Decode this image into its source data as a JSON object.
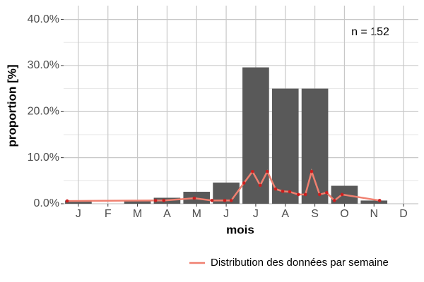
{
  "chart_data": {
    "type": "bar",
    "x_label": "mois",
    "y_label": "proportion [%]",
    "annotation": "n = 152",
    "categories": [
      "J",
      "F",
      "M",
      "A",
      "M",
      "J",
      "J",
      "A",
      "S",
      "O",
      "N",
      "D"
    ],
    "values": [
      0.7,
      0,
      0.7,
      1.3,
      2.6,
      4.6,
      29.6,
      25.0,
      25.0,
      3.9,
      0.7,
      0
    ],
    "color": "#595959",
    "series": [
      {
        "name": "Distribution des données par semaine",
        "type": "line",
        "color": "#f08070",
        "point_color": "#cc1f1f",
        "x": [
          0.62,
          3.61,
          3.89,
          4.92,
          5.52,
          5.95,
          6.17,
          6.6,
          6.89,
          7.15,
          7.39,
          7.67,
          7.91,
          8.15,
          8.44,
          8.68,
          8.89,
          9.16,
          9.4,
          9.66,
          9.92,
          11.19
        ],
        "values": [
          0.6,
          0.7,
          0.7,
          1.2,
          0.7,
          0.7,
          0.7,
          4.5,
          7.0,
          4.0,
          7.0,
          3.2,
          2.7,
          2.6,
          2.0,
          2.0,
          7.0,
          2.0,
          2.4,
          0.7,
          2.0,
          0.7
        ]
      }
    ],
    "ylim": [
      0,
      43
    ],
    "yticks": [
      {
        "value": 0,
        "label": "0.0%"
      },
      {
        "value": 10,
        "label": "10.0%"
      },
      {
        "value": 20,
        "label": "20.0%"
      },
      {
        "value": 30,
        "label": "30.0%"
      },
      {
        "value": 40,
        "label": "40.0%"
      }
    ],
    "grid": true,
    "legend": "bottom-right"
  }
}
